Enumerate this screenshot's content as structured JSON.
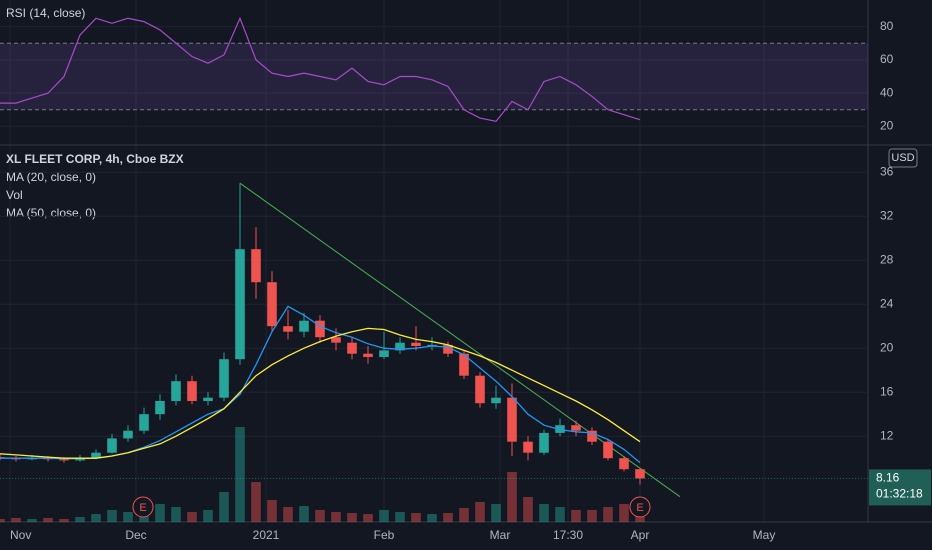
{
  "chart_data": [
    {
      "type": "line",
      "legend_title": "RSI (14, close)",
      "xlim": [
        0,
        217
      ],
      "ylim": [
        10,
        96
      ],
      "yticks": [
        20,
        40,
        60,
        80
      ],
      "grid": true,
      "bands": [
        30,
        70
      ],
      "band_color": "#7e57c2",
      "x": [
        0,
        4,
        8,
        12,
        16,
        20,
        24,
        28,
        32,
        36,
        40,
        44,
        48,
        52,
        56,
        60,
        64,
        68,
        72,
        76,
        80,
        84,
        88,
        92,
        96,
        100,
        104,
        108,
        112,
        116,
        120,
        124,
        128,
        132,
        136,
        140,
        144,
        148,
        152,
        156,
        160
      ],
      "series": [
        {
          "name": "RSI",
          "color": "#a64dc9",
          "values": [
            34,
            34,
            37,
            40,
            50,
            75,
            85,
            82,
            85,
            83,
            78,
            70,
            62,
            58,
            63,
            85,
            60,
            52,
            50,
            52,
            50,
            48,
            55,
            47,
            45,
            50,
            50,
            48,
            44,
            30,
            25,
            23,
            35,
            30,
            47,
            50,
            45,
            38,
            30,
            27,
            24
          ]
        }
      ]
    },
    {
      "type": "candlestick",
      "legend_title": "XL FLEET CORP, 4h, Cboe BZX",
      "currency": "USD",
      "xlim": [
        0,
        217
      ],
      "ylim": [
        4.2,
        38.2
      ],
      "yticks": [
        12,
        16,
        20,
        24,
        28,
        32,
        36
      ],
      "grid": true,
      "xticks": [
        {
          "value": 2.5,
          "label": "Nov"
        },
        {
          "value": 34,
          "label": "Dec"
        },
        {
          "value": 66.5,
          "label": "2021"
        },
        {
          "value": 96,
          "label": "Feb"
        },
        {
          "value": 125,
          "label": "Mar"
        },
        {
          "value": 142,
          "label": "17:30"
        },
        {
          "value": 160,
          "label": "Apr"
        },
        {
          "value": 191,
          "label": "May"
        }
      ],
      "up_color": "#26a69a",
      "down_color": "#ef5350",
      "x": [
        0,
        4,
        8,
        12,
        16,
        20,
        24,
        28,
        32,
        36,
        40,
        44,
        48,
        52,
        56,
        60,
        64,
        68,
        72,
        76,
        80,
        84,
        88,
        92,
        96,
        100,
        104,
        108,
        112,
        116,
        120,
        124,
        128,
        132,
        136,
        140,
        144,
        148,
        152,
        156,
        160
      ],
      "open": [
        10.1,
        10.0,
        9.9,
        10.0,
        9.9,
        9.8,
        10.0,
        10.5,
        11.8,
        12.5,
        14.0,
        15.2,
        17.0,
        15.2,
        15.5,
        19.0,
        29.0,
        26.0,
        22.0,
        21.5,
        22.5,
        21.0,
        20.5,
        19.5,
        19.2,
        19.8,
        20.5,
        20.2,
        20.3,
        19.5,
        17.5,
        15.0,
        15.5,
        11.5,
        10.5,
        12.3,
        13.0,
        12.5,
        11.5,
        10.0,
        9.0
      ],
      "high": [
        10.3,
        10.2,
        10.3,
        10.2,
        10.1,
        10.3,
        10.8,
        12.2,
        13.0,
        14.6,
        15.8,
        17.6,
        17.5,
        16.0,
        19.6,
        35.0,
        31.0,
        27.0,
        23.5,
        23.2,
        23.0,
        21.8,
        21.0,
        20.2,
        21.5,
        21.0,
        22.0,
        21.0,
        20.6,
        19.8,
        17.8,
        16.6,
        16.8,
        12.0,
        12.6,
        13.6,
        13.4,
        12.8,
        11.7,
        10.2,
        9.1
      ],
      "low": [
        9.8,
        9.7,
        9.8,
        9.7,
        9.6,
        9.7,
        9.9,
        10.4,
        11.5,
        12.2,
        13.5,
        14.8,
        14.9,
        14.8,
        15.2,
        18.5,
        24.5,
        21.5,
        20.8,
        21.0,
        20.5,
        19.8,
        19.0,
        18.6,
        19.0,
        19.5,
        19.8,
        19.8,
        19.2,
        17.2,
        14.6,
        14.5,
        10.2,
        9.8,
        10.3,
        12.0,
        12.0,
        11.2,
        9.8,
        8.8,
        7.6
      ],
      "close": [
        10.0,
        9.9,
        10.0,
        9.9,
        9.8,
        10.0,
        10.5,
        11.8,
        12.5,
        14.0,
        15.2,
        17.0,
        15.2,
        15.5,
        19.0,
        29.0,
        26.0,
        22.0,
        21.5,
        22.5,
        21.0,
        20.5,
        19.5,
        19.2,
        19.8,
        20.5,
        20.2,
        20.3,
        19.5,
        17.5,
        15.0,
        15.5,
        11.5,
        10.5,
        12.3,
        13.0,
        12.5,
        11.5,
        10.0,
        9.0,
        8.16
      ],
      "series": [
        {
          "name": "MA (20, close, 0)",
          "color": "#2196f3",
          "values": [
            10.0,
            10.0,
            10.0,
            10.0,
            9.95,
            9.95,
            10.0,
            10.2,
            10.5,
            11.0,
            11.6,
            12.4,
            13.2,
            14.0,
            14.5,
            15.8,
            18.5,
            21.5,
            23.8,
            23.0,
            22.0,
            21.4,
            21.0,
            20.4,
            20.0,
            19.9,
            20.0,
            20.2,
            20.1,
            19.4,
            18.2,
            17.0,
            15.6,
            14.0,
            13.0,
            12.6,
            12.4,
            12.3,
            11.7,
            10.8,
            9.6
          ]
        },
        {
          "name": "MA (50, close, 0)",
          "color": "#ffeb3b",
          "values": [
            10.4,
            10.3,
            10.2,
            10.1,
            10.0,
            10.0,
            10.0,
            10.2,
            10.5,
            10.9,
            11.3,
            12.0,
            12.8,
            13.6,
            14.5,
            16.0,
            17.5,
            18.5,
            19.3,
            20.0,
            20.6,
            21.1,
            21.5,
            21.8,
            21.7,
            21.2,
            20.8,
            20.6,
            20.3,
            19.8,
            19.3,
            18.7,
            18.0,
            17.3,
            16.6,
            15.9,
            15.2,
            14.4,
            13.5,
            12.5,
            11.5
          ]
        }
      ],
      "volume": {
        "name": "Vol",
        "vlim": [
          0,
          100
        ],
        "values": [
          3,
          4,
          3,
          4,
          3,
          5,
          8,
          12,
          10,
          14,
          18,
          15,
          10,
          12,
          30,
          95,
          40,
          22,
          15,
          16,
          12,
          10,
          9,
          8,
          12,
          10,
          9,
          8,
          9,
          14,
          20,
          18,
          50,
          25,
          18,
          15,
          12,
          12,
          15,
          18,
          22
        ]
      },
      "trendline": {
        "color": "#4caf50",
        "x": [
          60,
          170
        ],
        "y": [
          35,
          6.5
        ]
      },
      "events": [
        {
          "x": 35.75,
          "label": "E"
        },
        {
          "x": 160,
          "label": "E"
        }
      ],
      "last_price": 8.16,
      "countdown": "01:32:18",
      "last_price_color": "#1f5f56"
    }
  ]
}
